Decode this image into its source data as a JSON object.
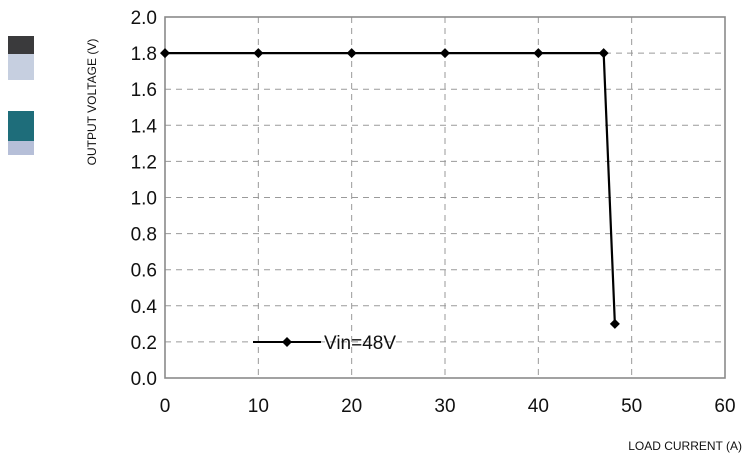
{
  "chart_data": {
    "type": "line",
    "title": "",
    "xlabel": "LOAD CURRENT (A)",
    "ylabel": "OUTPUT VOLTAGE (V)",
    "xlim": [
      0,
      60
    ],
    "ylim": [
      0.0,
      2.0
    ],
    "xticks": [
      "0",
      "10",
      "20",
      "30",
      "40",
      "50",
      "60"
    ],
    "yticks": [
      "0.0",
      "0.2",
      "0.4",
      "0.6",
      "0.8",
      "1.0",
      "1.2",
      "1.4",
      "1.6",
      "1.8",
      "2.0"
    ],
    "grid": true,
    "legend_position": "bottom-left",
    "series": [
      {
        "name": "Vin=48V",
        "color": "#000000",
        "marker": "diamond",
        "x": [
          0,
          10,
          20,
          30,
          40,
          47,
          48.2
        ],
        "y": [
          1.8,
          1.8,
          1.8,
          1.8,
          1.8,
          1.8,
          0.3
        ]
      }
    ]
  },
  "swatches": {
    "colors": [
      "#3a3a3c",
      "#c6cfe0",
      "#1e6d7a",
      "#b6bfd8"
    ]
  }
}
